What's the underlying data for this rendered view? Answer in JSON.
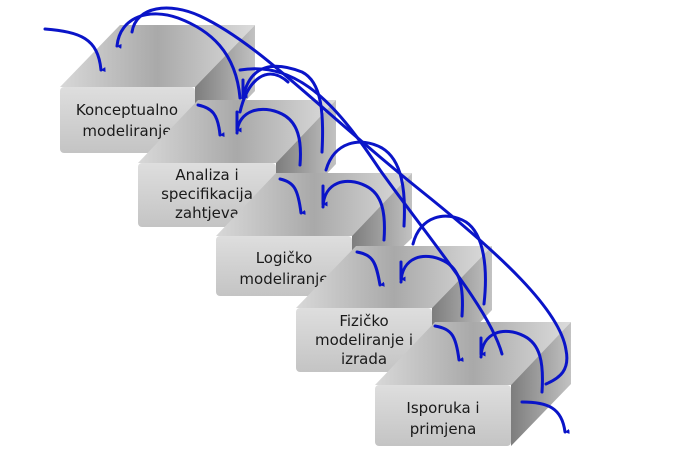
{
  "diagram": {
    "stages": [
      {
        "id": "konceptualno",
        "lines": [
          "Konceptualno",
          "modeliranje"
        ]
      },
      {
        "id": "analiza",
        "lines": [
          "Analiza i",
          "specifikacija",
          "zahtjeva"
        ]
      },
      {
        "id": "logicko",
        "lines": [
          "Logičko",
          "modeliranje"
        ]
      },
      {
        "id": "fizicko",
        "lines": [
          "Fizičko",
          "modeliranje i",
          "izrada"
        ]
      },
      {
        "id": "isporuka",
        "lines": [
          "Isporuka i",
          "primjena"
        ]
      }
    ],
    "colors": {
      "arrow": "#0a14c8",
      "box_front": "#d2d2d2",
      "box_top": "#b8b8b8",
      "box_side": "#8f8f8f",
      "text": "#1a1a1a"
    }
  }
}
